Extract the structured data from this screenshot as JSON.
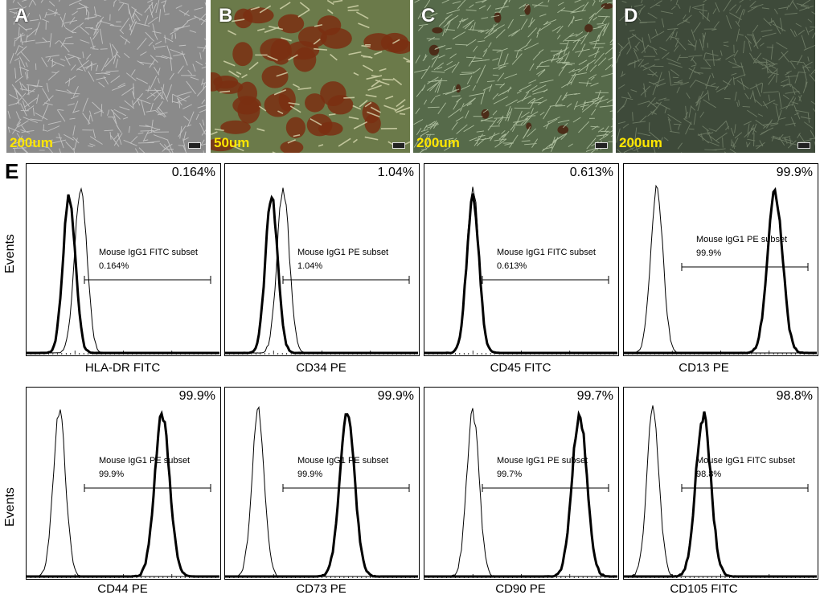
{
  "photos": [
    {
      "label": "A",
      "scale": "200um",
      "bg": "#8a8a8a",
      "fiber": "#d6d6d6"
    },
    {
      "label": "B",
      "scale": "50um",
      "bg": "#6b7a4a",
      "fiber": "#dfe0b8",
      "blob": "#7a2f12"
    },
    {
      "label": "C",
      "scale": "200um",
      "bg": "#566a4a",
      "fiber": "#c8d8b8",
      "blob": "#4a2210"
    },
    {
      "label": "D",
      "scale": "200um",
      "bg": "#3e4a3a",
      "fiber": "#7e8c74"
    }
  ],
  "flow": {
    "label": "E",
    "ylabel": "Events",
    "panels": [
      {
        "marker": "HLA-DR FITC",
        "pct": "0.164%",
        "gate": "Mouse IgG1 FITC subset",
        "gatepct": "0.164%",
        "thick": 0.22,
        "thin": 0.28,
        "thickSep": false
      },
      {
        "marker": "CD34 PE",
        "pct": "1.04%",
        "gate": "Mouse IgG1 PE subset",
        "gatepct": "1.04%",
        "thick": 0.24,
        "thin": 0.3,
        "thickSep": false
      },
      {
        "marker": "CD45 FITC",
        "pct": "0.613%",
        "gate": "Mouse IgG1 FITC subset",
        "gatepct": "0.613%",
        "thick": 0.25,
        "thin": 0.25,
        "thickSep": false
      },
      {
        "marker": "CD13 PE",
        "pct": "99.9%",
        "gate": "Mouse IgG1 PE subset",
        "gatepct": "99.9%",
        "thick": 0.78,
        "thin": 0.17,
        "thickSep": true
      },
      {
        "marker": "CD44 PE",
        "pct": "99.9%",
        "gate": "Mouse IgG1 PE subset",
        "gatepct": "99.9%",
        "thick": 0.7,
        "thin": 0.17,
        "thickSep": true
      },
      {
        "marker": "CD73 PE",
        "pct": "99.9%",
        "gate": "Mouse IgG1 PE subset",
        "gatepct": "99.9%",
        "thick": 0.63,
        "thin": 0.17,
        "thickSep": true
      },
      {
        "marker": "CD90 PE",
        "pct": "99.7%",
        "gate": "Mouse IgG1 PE subset",
        "gatepct": "99.7%",
        "thick": 0.8,
        "thin": 0.25,
        "thickSep": true
      },
      {
        "marker": "CD105 FITC",
        "pct": "98.8%",
        "gate": "Mouse IgG1 FITC subset",
        "gatepct": "98.8%",
        "thick": 0.41,
        "thin": 0.15,
        "thickSep": true
      }
    ]
  }
}
